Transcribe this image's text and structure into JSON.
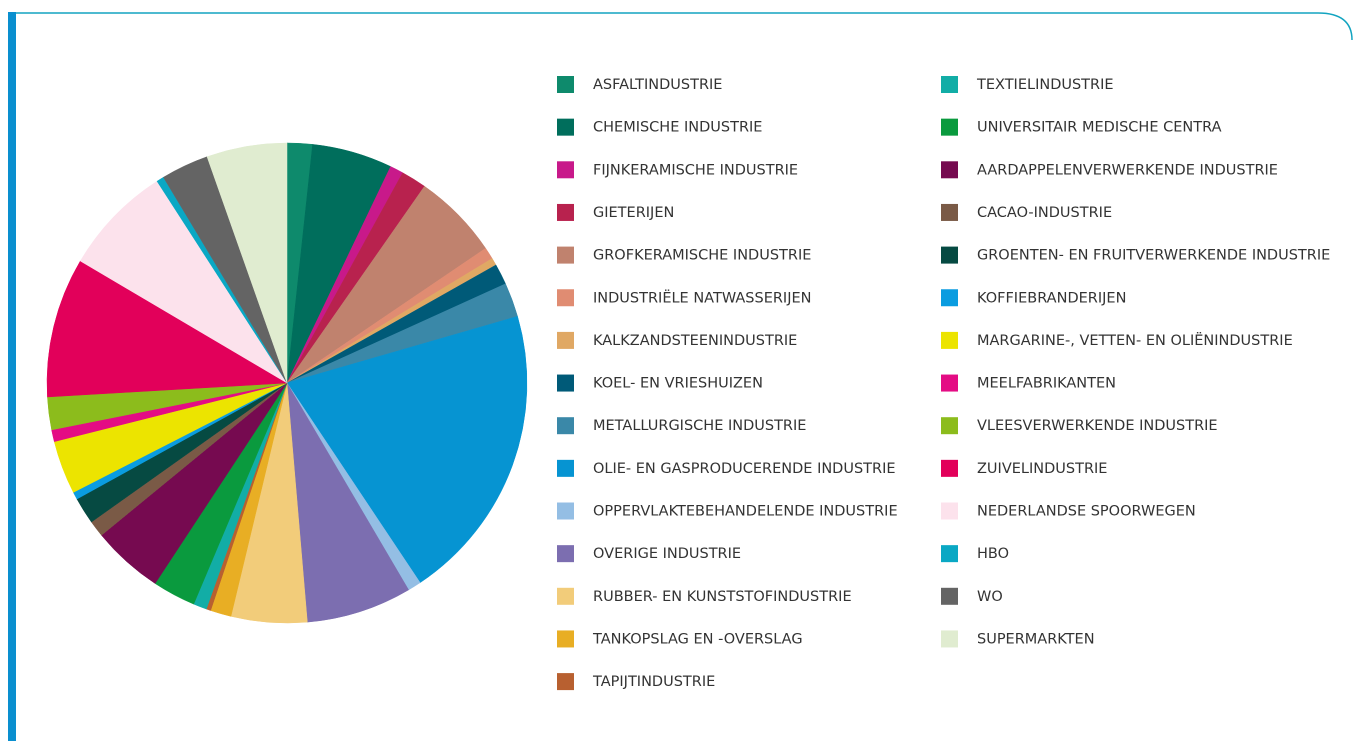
{
  "chart_data": {
    "type": "pie",
    "categories": [
      "ASFALTINDUSTRIE",
      "CHEMISCHE INDUSTRIE",
      "FIJNKERAMISCHE INDUSTRIE",
      "GIETERIJEN",
      "GROFKERAMISCHE INDUSTRIE",
      "INDUSTRIËLE NATWASSERIJEN",
      "KALKZANDSTEENINDUSTRIE",
      "KOEL- EN VRIESHUIZEN",
      "METALLURGISCHE INDUSTRIE",
      "OLIE- EN GASPRODUCERENDE INDUSTRIE",
      "OPPERVLAKTEBEHANDELENDE INDUSTRIE",
      "OVERIGE INDUSTRIE",
      "RUBBER- EN KUNSTSTOFINDUSTRIE",
      "TANKOPSLAG EN -OVERSLAG",
      "TAPIJTINDUSTRIE",
      "TEXTIELINDUSTRIE",
      "UNIVERSITAIR MEDISCHE CENTRA",
      "AARDAPPELENVERWERKENDE INDUSTRIE",
      "CACAO-INDUSTRIE",
      "GROENTEN- EN FRUITVERWERKENDE INDUSTRIE",
      "KOFFIEBRANDERIJEN",
      "MARGARINE-, VETTEN- EN OLIËNINDUSTRIE",
      "MEELFABRIKANTEN",
      "VLEESVERWERKENDE INDUSTRIE",
      "ZUIVELINDUSTRIE",
      "NEDERLANDSE SPOORWEGEN",
      "HBO",
      "WO",
      "SUPERMARKTEN"
    ],
    "values": [
      1.7,
      5.4,
      0.9,
      1.7,
      5.8,
      0.8,
      0.5,
      1.4,
      2.3,
      20.1,
      0.9,
      7.1,
      5.1,
      1.4,
      0.3,
      0.9,
      2.9,
      4.8,
      1.1,
      1.8,
      0.5,
      3.6,
      0.8,
      2.2,
      9.4,
      7.4,
      0.5,
      3.2,
      5.4
    ],
    "colors": [
      "#0e8a6c",
      "#006e5c",
      "#c8198a",
      "#b8224e",
      "#c0826e",
      "#e08c72",
      "#e0a864",
      "#005a78",
      "#3a88a8",
      "#0694d2",
      "#94bee4",
      "#7c6eb0",
      "#f2cc7a",
      "#e8ae24",
      "#b86030",
      "#12ada6",
      "#0a9a3e",
      "#760a50",
      "#7a5a46",
      "#064a42",
      "#0a9ce0",
      "#ece400",
      "#e40c84",
      "#8cbc1c",
      "#e2005a",
      "#fce2ec",
      "#0aa8c4",
      "#646464",
      "#e0ecd0"
    ]
  }
}
